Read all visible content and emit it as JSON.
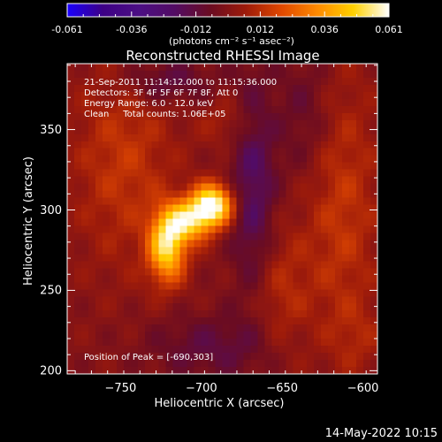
{
  "colorbar": {
    "tick_labels": [
      "-0.061",
      "-0.036",
      "-0.012",
      "0.012",
      "0.036",
      "0.061"
    ],
    "unit_label": "(photons cm⁻² s⁻¹ asec⁻²)"
  },
  "footer": {
    "timestamp": "14-May-2022 10:15"
  },
  "chart_data": {
    "type": "heatmap",
    "title": "Reconstructed RHESSI Image",
    "xlabel": "Heliocentric X (arcsec)",
    "ylabel": "Heliocentric Y (arcsec)",
    "xlim": [
      -780,
      -588
    ],
    "ylim": [
      198,
      391
    ],
    "zlim": [
      -0.061,
      0.061
    ],
    "x_ticks": [
      -750,
      -700,
      -650,
      -600
    ],
    "y_ticks": [
      200,
      250,
      300,
      350
    ],
    "x_tick_labels": [
      "−750",
      "−700",
      "−650",
      "−600"
    ],
    "y_tick_labels": [
      "200",
      "250",
      "300",
      "350"
    ],
    "annotations": [
      "21-Sep-2011 11:14:12.000 to 11:15:36.000",
      "Detectors: 3F 4F 5F 6F 7F 8F, Att 0",
      "Energy Range: 6.0 - 12.0 keV",
      "Clean     Total counts: 1.06E+05"
    ],
    "peak_label": "Position of Peak = [-690,303]",
    "peak": {
      "x": -690,
      "y": 303
    },
    "sources": [
      {
        "x": -690,
        "y": 303,
        "sigma_x": 9,
        "sigma_y": 9,
        "amp": 0.061
      },
      {
        "x": -718,
        "y": 277,
        "sigma_x": 8,
        "sigma_y": 15,
        "amp": 0.05
      },
      {
        "x": -705,
        "y": 293,
        "sigma_x": 10,
        "sigma_y": 9,
        "amp": 0.042
      },
      {
        "x": -745,
        "y": 330,
        "sigma_x": 22,
        "sigma_y": 45,
        "amp": 0.014
      },
      {
        "x": -650,
        "y": 250,
        "sigma_x": 14,
        "sigma_y": 30,
        "amp": 0.012
      },
      {
        "x": -610,
        "y": 300,
        "sigma_x": 16,
        "sigma_y": 60,
        "amp": 0.014
      },
      {
        "x": -680,
        "y": 355,
        "sigma_x": 12,
        "sigma_y": 12,
        "amp": 0.009
      },
      {
        "x": -600,
        "y": 220,
        "sigma_x": 12,
        "sigma_y": 15,
        "amp": 0.006
      },
      {
        "x": -665,
        "y": 310,
        "sigma_x": 10,
        "sigma_y": 50,
        "amp": -0.02
      },
      {
        "x": -720,
        "y": 380,
        "sigma_x": 20,
        "sigma_y": 10,
        "amp": -0.015
      },
      {
        "x": -690,
        "y": 215,
        "sigma_x": 28,
        "sigma_y": 14,
        "amp": -0.012
      },
      {
        "x": -632,
        "y": 360,
        "sigma_x": 12,
        "sigma_y": 30,
        "amp": -0.01
      }
    ],
    "colormap": [
      "#1a00ff",
      "#3d0085",
      "#4c0f84",
      "#520c64",
      "#6a0c22",
      "#9e1b0a",
      "#e04800",
      "#ff8a00",
      "#ffd000",
      "#ffffff"
    ]
  }
}
